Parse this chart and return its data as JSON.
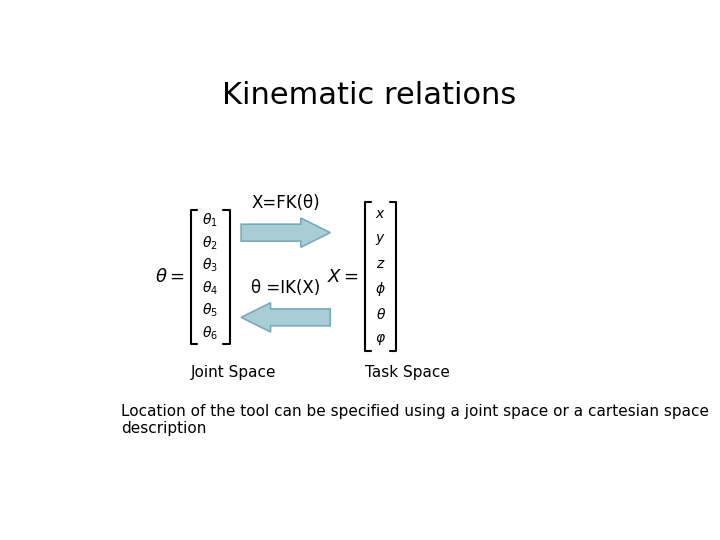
{
  "title": "Kinematic relations",
  "title_fontsize": 22,
  "background_color": "#ffffff",
  "arrow_color": "#a8cdd4",
  "arrow_edge_color": "#7aaab8",
  "fk_label": "X=FK(θ)",
  "ik_label": "θ =IK(X)",
  "joint_space_label": "Joint Space",
  "task_space_label": "Task Space",
  "bottom_text": "Location of the tool can be specified using a joint space or a cartesian space\ndescription",
  "joint_vector": [
    "θ_1",
    "θ_2",
    "θ_3",
    "θ_4",
    "θ_5",
    "θ_6"
  ],
  "task_vector": [
    "x",
    "y",
    "z",
    "\\phi",
    "θ",
    "\\varphi"
  ],
  "theta_label": "θ =",
  "X_label": "X ="
}
